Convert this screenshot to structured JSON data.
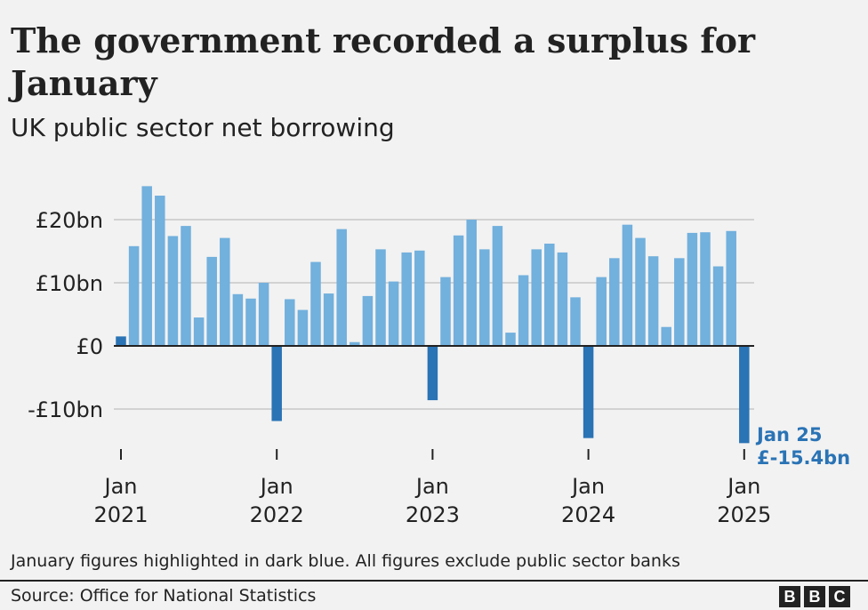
{
  "title": "The government recorded a surplus for January",
  "subtitle": "UK public sector net borrowing",
  "note": "January figures highlighted in dark blue. All figures exclude public sector banks",
  "source": "Source: Office for National Statistics",
  "logo": [
    "B",
    "B",
    "C"
  ],
  "colors": {
    "bar": "#72b0dd",
    "january": "#2a73b5",
    "annotation": "#2a73b5",
    "grid": "#c8c8c8",
    "axis": "#222222"
  },
  "chart_data": {
    "type": "bar",
    "title": "The government recorded a surplus for January",
    "subtitle": "UK public sector net borrowing",
    "xlabel": "",
    "ylabel": "",
    "ylim": [
      -15.4,
      25.3
    ],
    "grid": true,
    "unit": "£bn",
    "y_ticks": [
      {
        "value": 20,
        "label": "£20bn"
      },
      {
        "value": 10,
        "label": "£10bn"
      },
      {
        "value": 0,
        "label": "£0"
      },
      {
        "value": -10,
        "label": "-£10bn"
      }
    ],
    "x_ticks": [
      {
        "index": 0,
        "month": "Jan",
        "year": "2021"
      },
      {
        "index": 12,
        "month": "Jan",
        "year": "2022"
      },
      {
        "index": 24,
        "month": "Jan",
        "year": "2023"
      },
      {
        "index": 36,
        "month": "Jan",
        "year": "2024"
      },
      {
        "index": 48,
        "month": "Jan",
        "year": "2025"
      }
    ],
    "highlighted_indices": [
      0,
      12,
      24,
      36,
      48
    ],
    "values": [
      1.5,
      15.8,
      25.3,
      23.8,
      17.4,
      19.0,
      4.5,
      14.1,
      17.1,
      8.2,
      7.5,
      10.0,
      -11.9,
      7.4,
      5.7,
      13.3,
      8.3,
      18.5,
      0.6,
      7.9,
      15.3,
      10.2,
      14.8,
      15.1,
      -8.6,
      10.9,
      17.5,
      20.0,
      15.3,
      19.0,
      2.1,
      11.2,
      15.3,
      16.2,
      14.8,
      7.7,
      -14.6,
      10.9,
      13.9,
      19.2,
      17.1,
      14.2,
      3.0,
      13.9,
      17.9,
      18.0,
      12.6,
      18.2,
      -15.4
    ],
    "annotation": {
      "index": 48,
      "line1": "Jan 25",
      "line2": "£-15.4bn"
    }
  }
}
